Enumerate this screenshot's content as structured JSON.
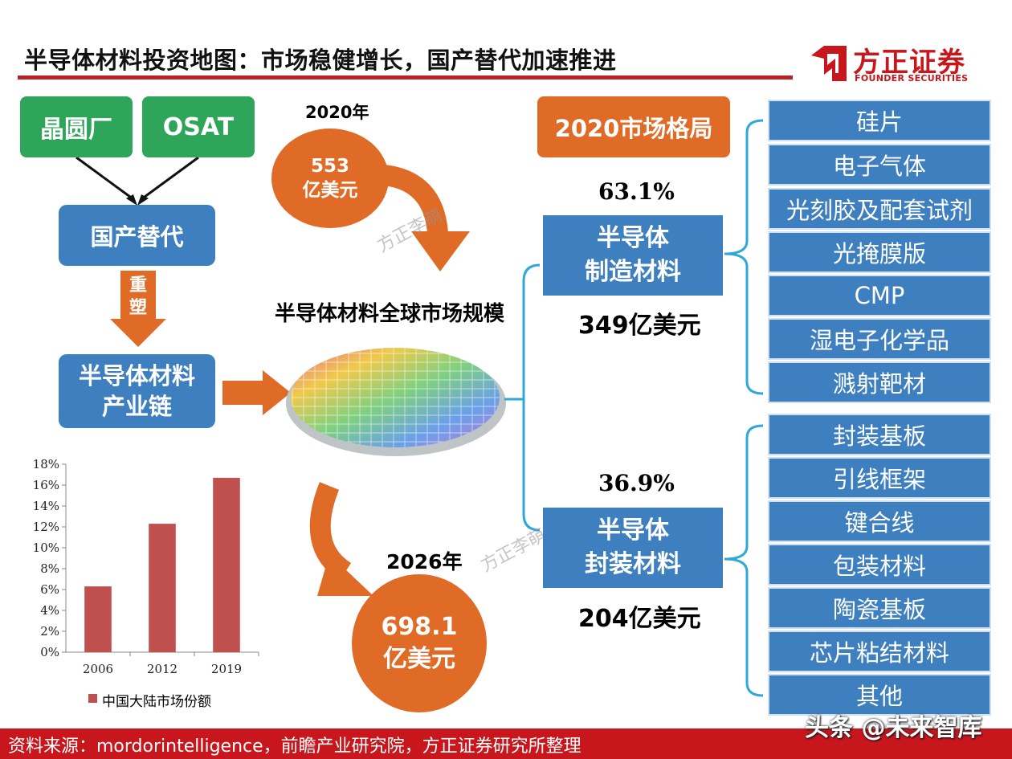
{
  "header": {
    "title": "半导体材料投资地图：市场稳健增长，国产替代加速推进",
    "logo_cn": "方正证券",
    "logo_en": "FOUNDER SECURITIES"
  },
  "left_flow": {
    "wafer_fab": "晶圆厂",
    "osat": "OSAT",
    "domestic_substitution": "国产替代",
    "reshape": "重塑",
    "chain_line1": "半导体材料",
    "chain_line2": "产业链"
  },
  "global_market": {
    "year_2020": "2020年",
    "value_2020_line1": "553",
    "value_2020_line2": "亿美元",
    "title": "半导体材料全球市场规模",
    "year_2026": "2026年",
    "value_2026_line1": "698.1",
    "value_2026_line2": "亿美元"
  },
  "market_2020": {
    "title": "2020市场格局",
    "manufacturing": {
      "pct": "63.1%",
      "label_line1": "半导体",
      "label_line2": "制造材料",
      "value": "349亿美元",
      "items": [
        "硅片",
        "电子气体",
        "光刻胶及配套试剂",
        "光掩膜版",
        "CMP",
        "湿电子化学品",
        "溅射靶材"
      ]
    },
    "packaging": {
      "pct": "36.9%",
      "label_line1": "半导体",
      "label_line2": "封装材料",
      "value": "204亿美元",
      "items": [
        "封装基板",
        "引线框架",
        "键合线",
        "包装材料",
        "陶瓷基板",
        "芯片粘结材料",
        "其他"
      ]
    }
  },
  "watermark": "方正李萌",
  "chart_data": {
    "type": "bar",
    "categories": [
      "2006",
      "2012",
      "2019"
    ],
    "values": [
      6.3,
      12.3,
      16.7
    ],
    "series": [
      {
        "name": "中国大陆市场份额",
        "values": [
          6.3,
          12.3,
          16.7
        ]
      }
    ],
    "ylim": [
      0,
      18
    ],
    "yticks": [
      "0%",
      "2%",
      "4%",
      "6%",
      "8%",
      "10%",
      "12%",
      "14%",
      "16%",
      "18%"
    ],
    "ytick_values": [
      0,
      2,
      4,
      6,
      8,
      10,
      12,
      14,
      16,
      18
    ],
    "legend_position": "bottom-left",
    "bar_color": "#c0504d",
    "grid": false
  },
  "footer": {
    "source": "资料来源：mordorintelligence，前瞻产业研究院，方正证券研究所整理",
    "overlay": "头条 @未来智库"
  },
  "colors": {
    "brand_red": "#c8161d",
    "green": "#2fa55a",
    "blue": "#3e7fbf",
    "orange": "#e06b27",
    "bracket": "#2fa8d8"
  }
}
